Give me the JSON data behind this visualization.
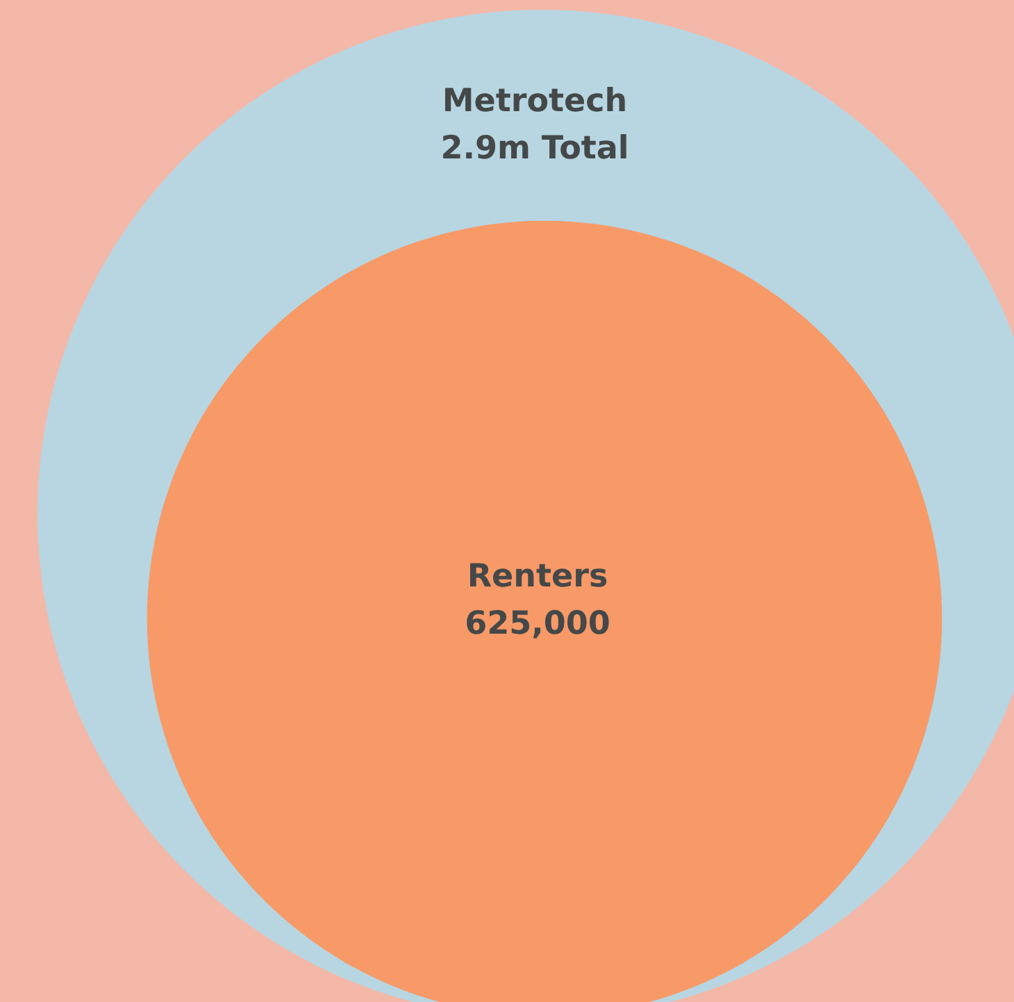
{
  "chart_data": {
    "type": "other",
    "categories": [
      "Metrotech",
      "Renters"
    ],
    "values": [
      2900000,
      625000
    ],
    "value_labels": [
      "2.9m Total",
      "625,000"
    ],
    "colors": [
      "#b7d6e2",
      "#f79a68"
    ]
  }
}
